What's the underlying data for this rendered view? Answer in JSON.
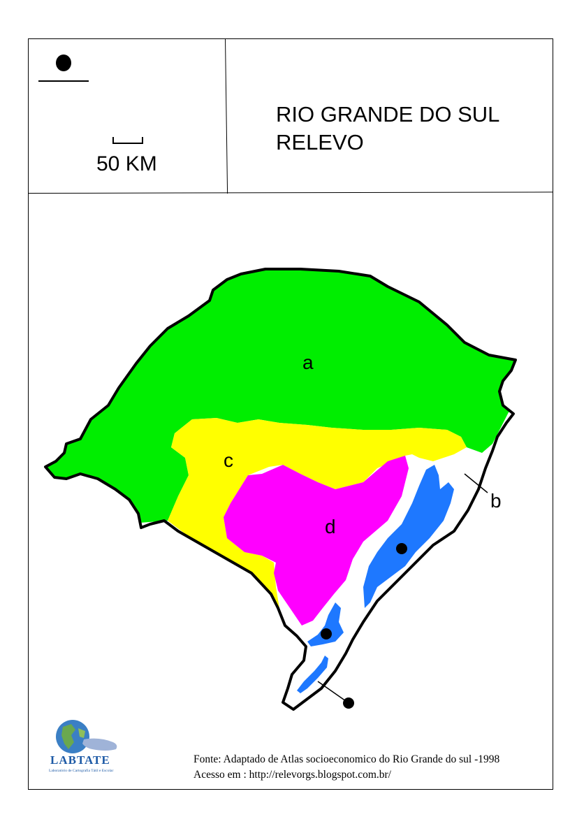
{
  "header": {
    "title_line1": "RIO GRANDE DO SUL",
    "title_line2": "RELEVO"
  },
  "legend": {
    "scale_label": "50 KM",
    "icon": "black-dot-over-line"
  },
  "map": {
    "regions": [
      {
        "label": "a",
        "color": "#00ee00"
      },
      {
        "label": "b",
        "color": "#ffffff"
      },
      {
        "label": "c",
        "color": "#ffff00"
      },
      {
        "label": "d",
        "color": "#ff00ff"
      }
    ],
    "water_color": "#1e78ff"
  },
  "logo": {
    "name": "LABTATE",
    "subtitle": "Laboratório de Cartografia Tátil e Escolar"
  },
  "source": {
    "line1": "Fonte: Adaptado de Atlas socioeconomico do Rio Grande do sul -1998",
    "line2": "Acesso em : http://relevorgs.blogspot.com.br/"
  }
}
